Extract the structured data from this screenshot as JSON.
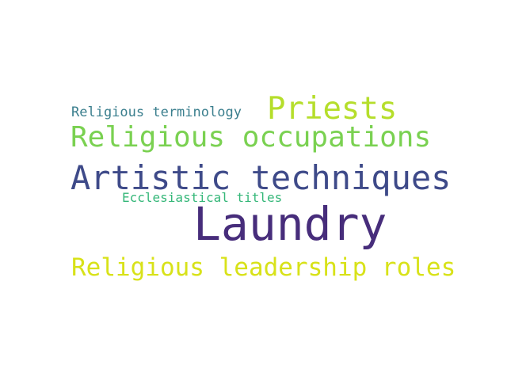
{
  "word_cloud": {
    "words": [
      {
        "text": "Religious terminology",
        "color": "#3b7f8e"
      },
      {
        "text": "Priests",
        "color": "#b5de2b"
      },
      {
        "text": "Religious occupations",
        "color": "#7ad151"
      },
      {
        "text": "Artistic techniques",
        "color": "#3e4a89"
      },
      {
        "text": "Ecclesiastical titles",
        "color": "#35b779"
      },
      {
        "text": "Laundry",
        "color": "#472d7b"
      },
      {
        "text": "Religious leadership roles",
        "color": "#d8e219"
      }
    ]
  }
}
